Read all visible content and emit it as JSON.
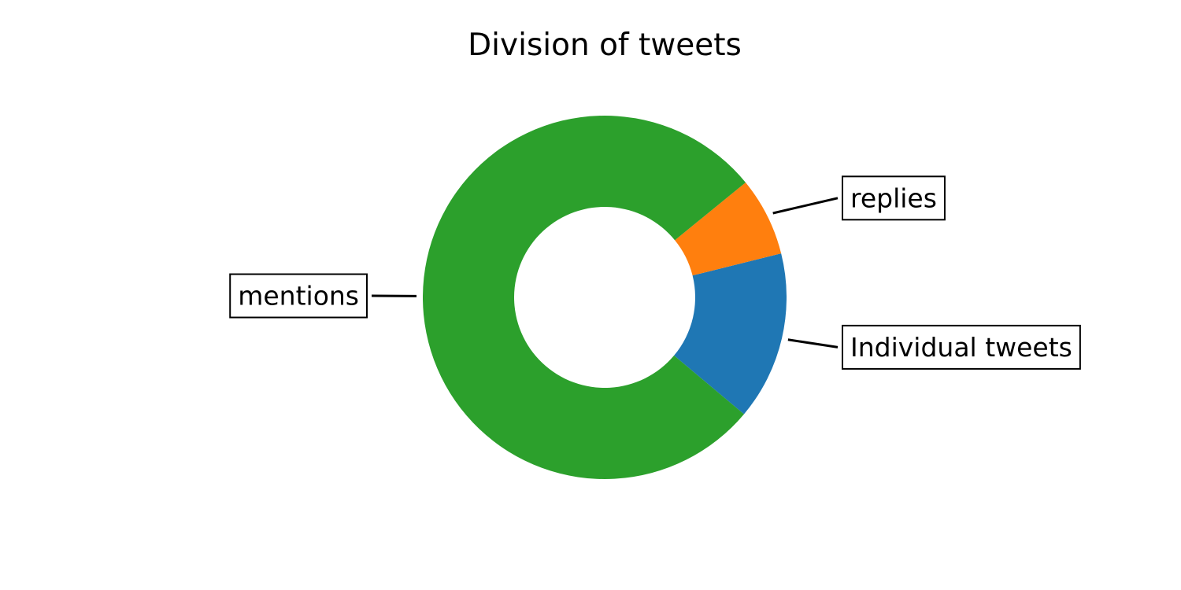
{
  "chart_data": {
    "type": "pie",
    "style": "donut",
    "title": "Division of tweets",
    "start_angle_deg": -40,
    "direction": "counterclockwise",
    "labels": [
      "Individual tweets",
      "replies",
      "mentions"
    ],
    "values": [
      15,
      7,
      78
    ],
    "colors": [
      "#1f77b4",
      "#ff7f0e",
      "#2ca02c"
    ]
  }
}
